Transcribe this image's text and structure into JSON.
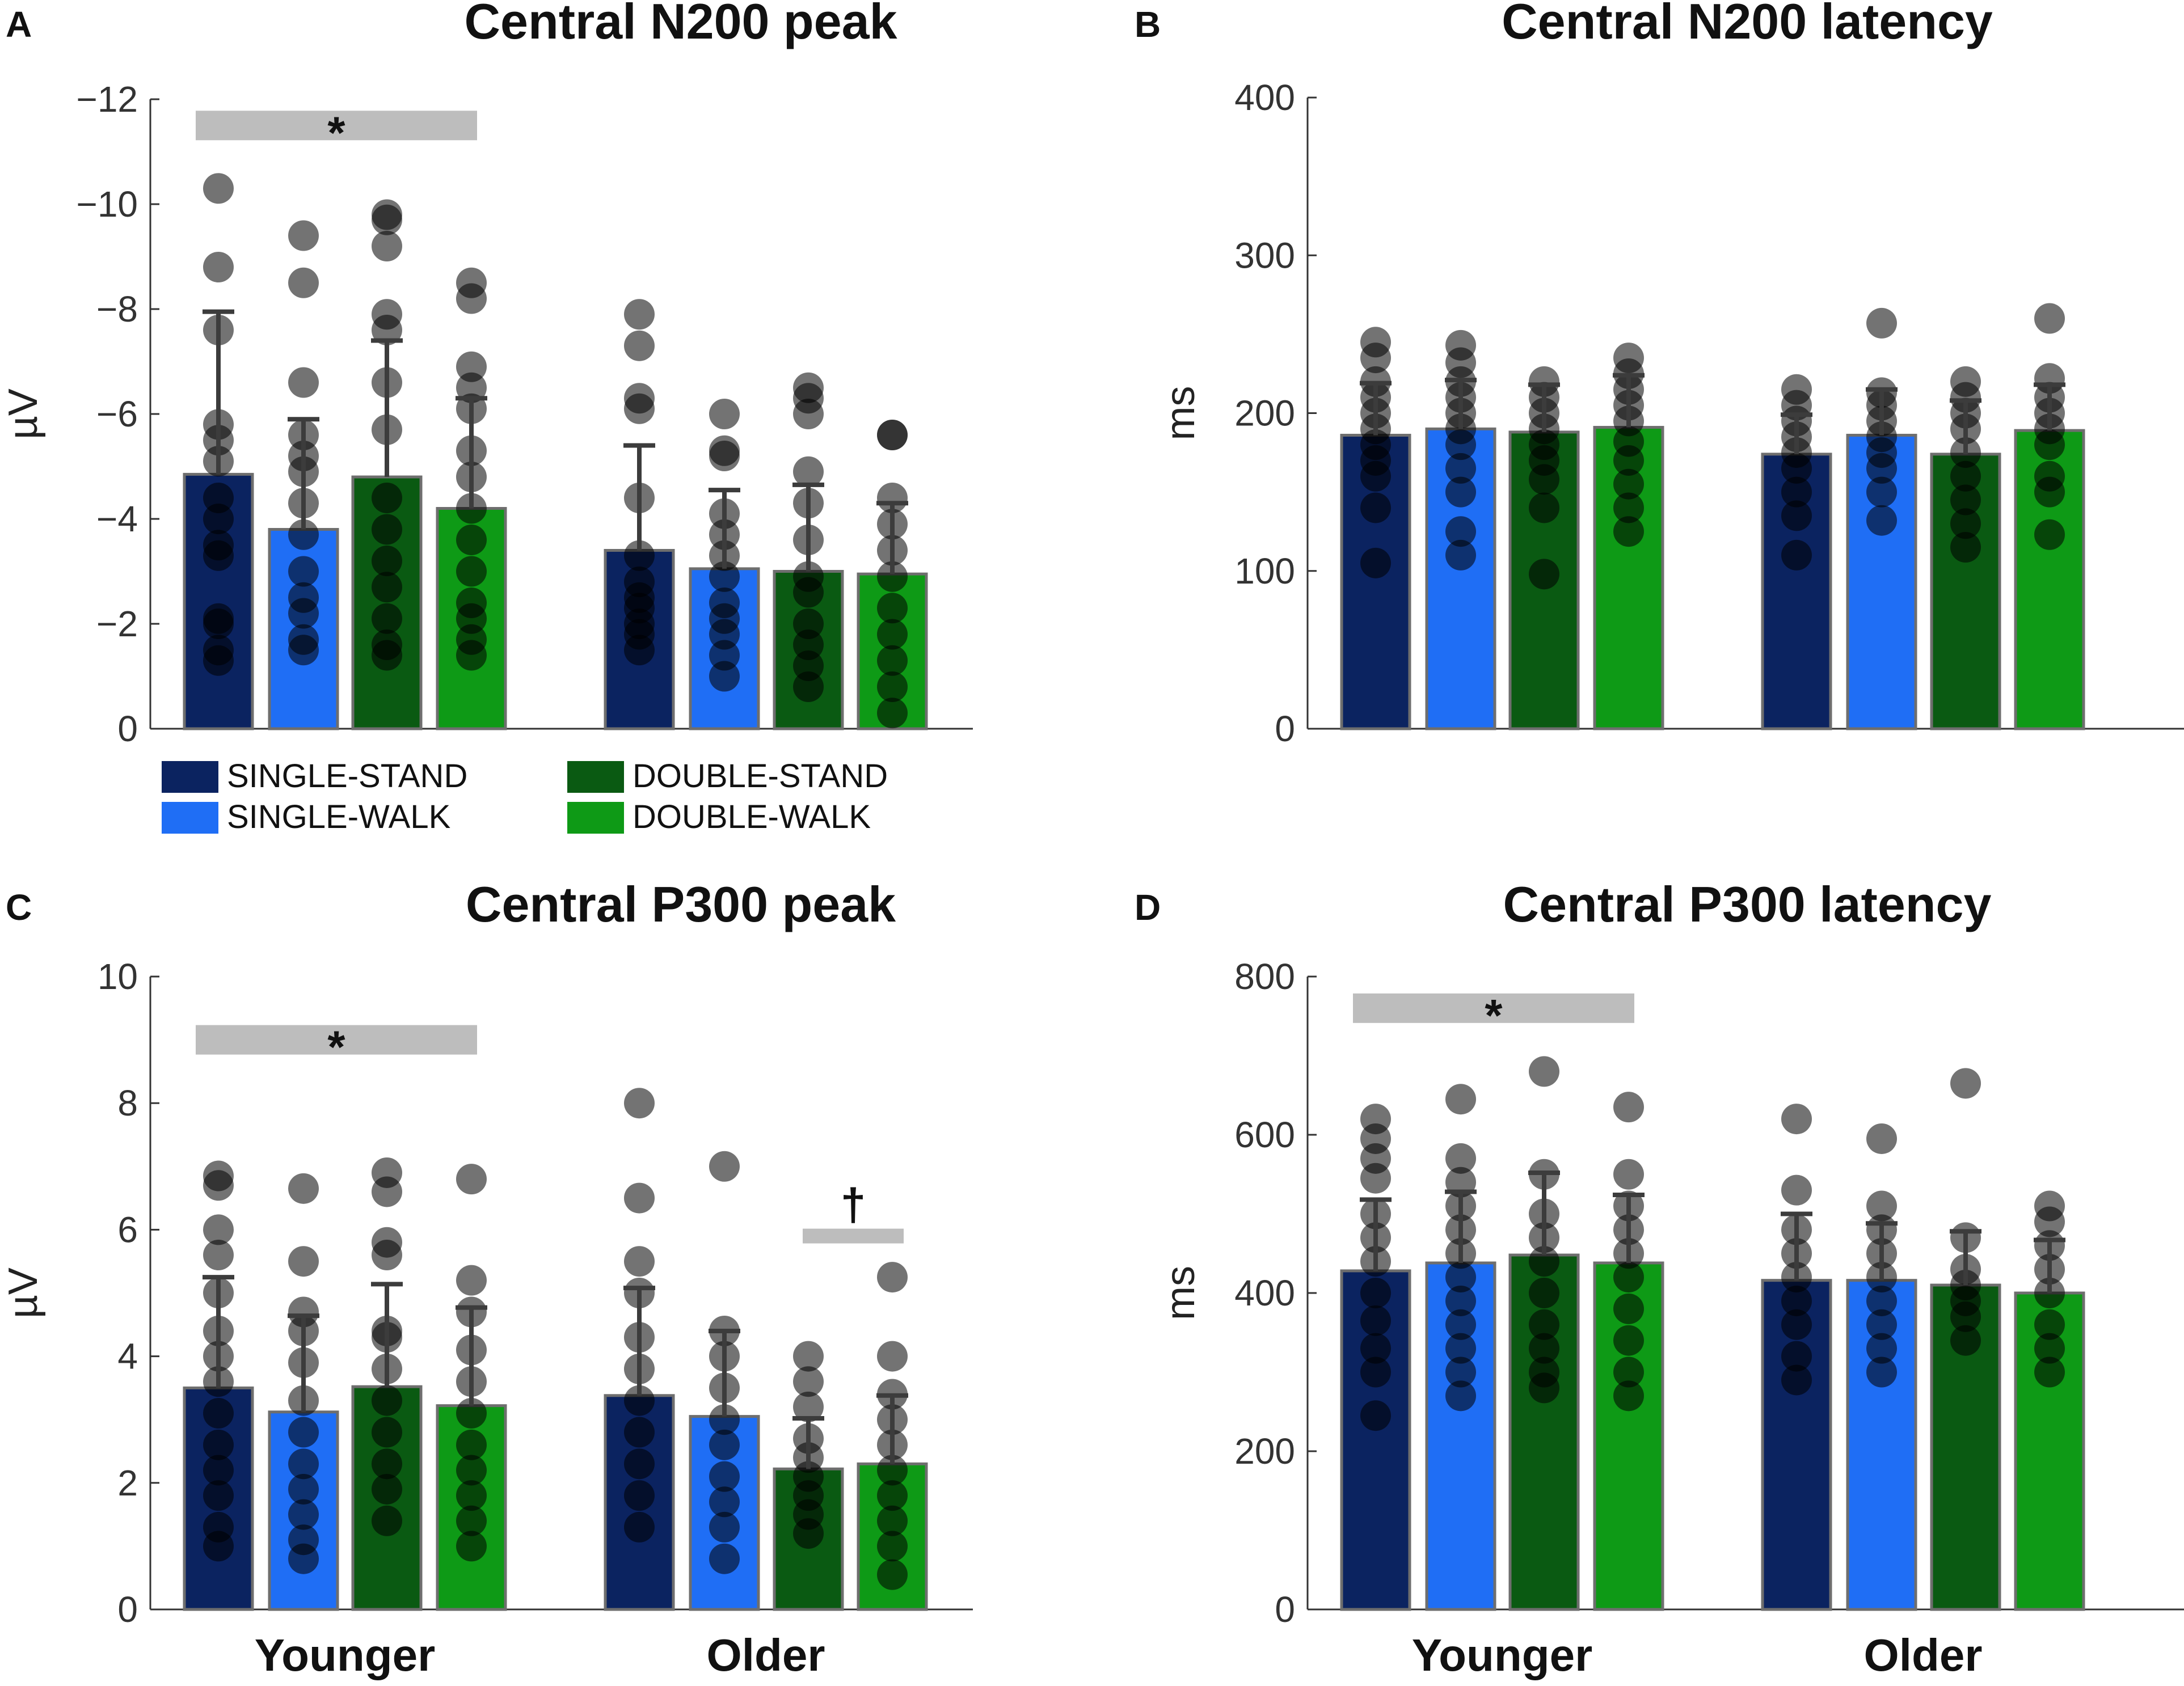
{
  "figure": {
    "colors": {
      "SINGLE-STAND": "#0b2360",
      "SINGLE-WALK": "#1f6ef5",
      "DOUBLE-STAND": "#0a5a12",
      "DOUBLE-WALK": "#0e9a16",
      "bar_edge": "#6e6e6e",
      "error_bar": "#3c3c3c",
      "sig_bar": "#bdbdbd",
      "axis": "#333333"
    },
    "legend": {
      "entries": [
        {
          "label": "SINGLE-STAND",
          "color": "#0b2360"
        },
        {
          "label": "SINGLE-WALK",
          "color": "#1f6ef5"
        },
        {
          "label": "DOUBLE-STAND",
          "color": "#0a5a12"
        },
        {
          "label": "DOUBLE-WALK",
          "color": "#0e9a16"
        }
      ]
    }
  },
  "chart_data": [
    {
      "panel": "A",
      "type": "bar",
      "title": "Central N200 peak",
      "ylabel": "µV",
      "ylim": [
        0,
        12
      ],
      "yticks": [
        0,
        2,
        4,
        6,
        8,
        10,
        12
      ],
      "ytick_labels": [
        "0",
        "−2",
        "−4",
        "−6",
        "−8",
        "−10",
        "−12"
      ],
      "groups": [
        "Younger",
        "Older"
      ],
      "show_group_labels": false,
      "series": [
        {
          "name": "SINGLE-STAND",
          "values": [
            4.85,
            3.4
          ],
          "error": [
            3.1,
            2.0
          ],
          "points": [
            [
              1.3,
              1.5,
              2.0,
              2.1,
              3.3,
              3.5,
              4.0,
              4.4,
              5.1,
              5.5,
              5.8,
              7.6,
              8.8,
              10.3
            ],
            [
              1.5,
              1.8,
              2.0,
              2.3,
              2.5,
              2.8,
              3.3,
              4.4,
              6.1,
              6.3,
              7.3,
              7.9
            ]
          ]
        },
        {
          "name": "SINGLE-WALK",
          "values": [
            3.8,
            3.05
          ],
          "error": [
            2.1,
            1.5
          ],
          "points": [
            [
              1.5,
              1.7,
              2.2,
              2.5,
              3.0,
              3.7,
              4.3,
              4.9,
              5.2,
              5.6,
              6.6,
              8.5,
              9.4
            ],
            [
              1.0,
              1.4,
              1.8,
              2.1,
              2.4,
              2.9,
              3.3,
              3.7,
              4.1,
              5.2,
              5.3,
              6.0
            ]
          ]
        },
        {
          "name": "DOUBLE-STAND",
          "values": [
            4.8,
            3.0
          ],
          "error": [
            2.6,
            1.65
          ],
          "points": [
            [
              1.4,
              1.6,
              2.1,
              2.7,
              3.2,
              3.8,
              4.4,
              5.7,
              6.6,
              7.6,
              7.9,
              9.2,
              9.7,
              9.8
            ],
            [
              0.8,
              1.2,
              1.6,
              2.0,
              2.6,
              2.9,
              3.6,
              4.3,
              4.9,
              6.0,
              6.3,
              6.5
            ]
          ]
        },
        {
          "name": "DOUBLE-WALK",
          "values": [
            4.2,
            2.95
          ],
          "error": [
            2.1,
            1.35
          ],
          "points": [
            [
              1.4,
              1.7,
              2.1,
              2.4,
              3.0,
              3.6,
              4.2,
              4.8,
              5.3,
              6.1,
              6.5,
              6.9,
              8.2,
              8.5
            ],
            [
              0.3,
              0.8,
              1.3,
              1.8,
              2.3,
              2.9,
              3.4,
              3.9,
              4.4,
              5.6,
              5.6
            ]
          ]
        }
      ],
      "significance": [
        {
          "groups": "Younger vs Older",
          "level": 11.5,
          "label": "*",
          "span": [
            0,
            1
          ]
        }
      ]
    },
    {
      "panel": "B",
      "type": "bar",
      "title": "Central N200 latency",
      "ylabel": "ms",
      "ylim": [
        0,
        400
      ],
      "yticks": [
        0,
        100,
        200,
        300,
        400
      ],
      "ytick_labels": [
        "0",
        "100",
        "200",
        "300",
        "400"
      ],
      "groups": [
        "Younger",
        "Older"
      ],
      "show_group_labels": false,
      "series": [
        {
          "name": "SINGLE-STAND",
          "values": [
            186,
            174
          ],
          "error": [
            33,
            25
          ],
          "points": [
            [
              105,
              140,
              160,
              170,
              180,
              190,
              200,
              210,
              220,
              235,
              245
            ],
            [
              110,
              135,
              150,
              165,
              175,
              185,
              195,
              205,
              215
            ]
          ]
        },
        {
          "name": "SINGLE-WALK",
          "values": [
            190,
            186
          ],
          "error": [
            31,
            29
          ],
          "points": [
            [
              110,
              125,
              150,
              165,
              180,
              190,
              200,
              210,
              220,
              232,
              243
            ],
            [
              132,
              150,
              165,
              175,
              185,
              195,
              205,
              213,
              257
            ]
          ]
        },
        {
          "name": "DOUBLE-STAND",
          "values": [
            188,
            174
          ],
          "error": [
            30,
            34
          ],
          "points": [
            [
              98,
              140,
              158,
              170,
              180,
              190,
              200,
              210,
              220
            ],
            [
              115,
              130,
              145,
              160,
              175,
              190,
              200,
              210,
              220
            ]
          ]
        },
        {
          "name": "DOUBLE-WALK",
          "values": [
            191,
            189
          ],
          "error": [
            33,
            29
          ],
          "points": [
            [
              125,
              140,
              155,
              170,
              182,
              195,
              205,
              215,
              225,
              235
            ],
            [
              123,
              150,
              160,
              180,
              190,
              200,
              210,
              222,
              260
            ]
          ]
        }
      ],
      "significance": []
    },
    {
      "panel": "C",
      "type": "bar",
      "title": "Central P300 peak",
      "ylabel": "µV",
      "ylim": [
        0,
        10
      ],
      "yticks": [
        0,
        2,
        4,
        6,
        8,
        10
      ],
      "ytick_labels": [
        "0",
        "2",
        "4",
        "6",
        "8",
        "10"
      ],
      "groups": [
        "Younger",
        "Older"
      ],
      "show_group_labels": true,
      "series": [
        {
          "name": "SINGLE-STAND",
          "values": [
            3.5,
            3.38
          ],
          "error": [
            1.75,
            1.7
          ],
          "points": [
            [
              1.0,
              1.3,
              1.8,
              2.2,
              2.6,
              3.1,
              3.6,
              4.0,
              4.4,
              5.0,
              5.6,
              6.0,
              6.7,
              6.85
            ],
            [
              1.3,
              1.8,
              2.3,
              2.8,
              3.3,
              3.8,
              4.3,
              5.0,
              5.5,
              6.5,
              8.0
            ]
          ]
        },
        {
          "name": "SINGLE-WALK",
          "values": [
            3.12,
            3.05
          ],
          "error": [
            1.52,
            1.35
          ],
          "points": [
            [
              0.8,
              1.1,
              1.5,
              1.9,
              2.3,
              2.8,
              3.3,
              3.9,
              4.4,
              4.7,
              5.5,
              6.65
            ],
            [
              0.8,
              1.3,
              1.7,
              2.1,
              2.6,
              3.0,
              3.5,
              4.0,
              4.4,
              7.0
            ]
          ]
        },
        {
          "name": "DOUBLE-STAND",
          "values": [
            3.52,
            2.22
          ],
          "error": [
            1.62,
            0.8
          ],
          "points": [
            [
              1.4,
              1.9,
              2.3,
              2.8,
              3.3,
              3.8,
              4.3,
              4.4,
              5.6,
              5.8,
              6.6,
              6.9
            ],
            [
              1.2,
              1.5,
              1.8,
              2.1,
              2.4,
              2.7,
              3.2,
              3.6,
              4.0
            ]
          ]
        },
        {
          "name": "DOUBLE-WALK",
          "values": [
            3.22,
            2.3
          ],
          "error": [
            1.55,
            1.08
          ],
          "points": [
            [
              1.0,
              1.4,
              1.8,
              2.2,
              2.6,
              3.1,
              3.6,
              4.1,
              4.7,
              5.2,
              6.8
            ],
            [
              0.55,
              1.0,
              1.4,
              1.8,
              2.2,
              2.6,
              3.0,
              3.4,
              4.0,
              5.25
            ]
          ]
        }
      ],
      "significance": [
        {
          "groups": "Younger vs Older",
          "level": 9.0,
          "label": "*",
          "span": [
            0,
            1
          ]
        },
        {
          "groups": "Older: single vs double",
          "level": 5.9,
          "label": "†",
          "span": [
            2,
            3
          ]
        }
      ]
    },
    {
      "panel": "D",
      "type": "bar",
      "title": "Central P300 latency",
      "ylabel": "ms",
      "ylim": [
        0,
        800
      ],
      "yticks": [
        0,
        200,
        400,
        600,
        800
      ],
      "ytick_labels": [
        "0",
        "200",
        "400",
        "600",
        "800"
      ],
      "groups": [
        "Younger",
        "Older"
      ],
      "show_group_labels": true,
      "series": [
        {
          "name": "SINGLE-STAND",
          "values": [
            428,
            416
          ],
          "error": [
            90,
            84
          ],
          "points": [
            [
              245,
              300,
              330,
              365,
              400,
              440,
              470,
              500,
              545,
              570,
              595,
              620
            ],
            [
              290,
              320,
              360,
              390,
              420,
              450,
              480,
              530,
              620
            ]
          ]
        },
        {
          "name": "SINGLE-WALK",
          "values": [
            438,
            416
          ],
          "error": [
            90,
            72
          ],
          "points": [
            [
              270,
              300,
              330,
              360,
              390,
              420,
              450,
              480,
              510,
              540,
              570,
              645
            ],
            [
              300,
              330,
              360,
              390,
              420,
              450,
              480,
              510,
              595
            ]
          ]
        },
        {
          "name": "DOUBLE-STAND",
          "values": [
            448,
            410
          ],
          "error": [
            104,
            68
          ],
          "points": [
            [
              280,
              300,
              330,
              360,
              400,
              440,
              470,
              500,
              550,
              680
            ],
            [
              340,
              370,
              390,
              410,
              430,
              470,
              665
            ]
          ]
        },
        {
          "name": "DOUBLE-WALK",
          "values": [
            438,
            400
          ],
          "error": [
            86,
            67
          ],
          "points": [
            [
              270,
              300,
              340,
              380,
              420,
              450,
              480,
              510,
              550,
              635
            ],
            [
              300,
              330,
              360,
              400,
              430,
              460,
              490,
              510
            ]
          ]
        }
      ],
      "significance": [
        {
          "groups": "Younger vs Older",
          "level": 760,
          "label": "*",
          "span": [
            0,
            1
          ]
        }
      ]
    }
  ]
}
